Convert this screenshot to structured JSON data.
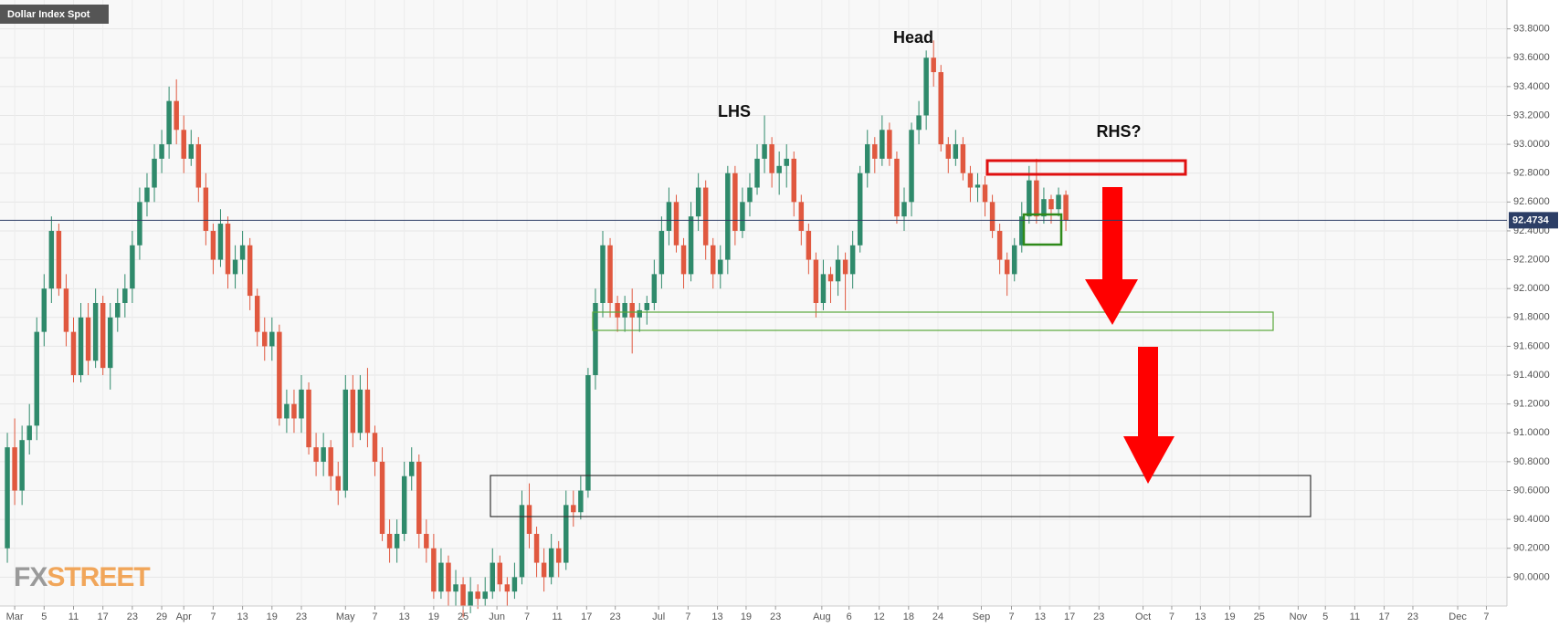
{
  "chart_data": {
    "type": "candlestick",
    "title": "Dollar Index Spot",
    "up_color": "#2f8a6b",
    "down_color": "#e0583f",
    "open": [
      90.2,
      90.9,
      90.6,
      90.95,
      91.05,
      91.7,
      92.0,
      92.4,
      92.0,
      91.7,
      91.4,
      91.8,
      91.5,
      91.9,
      91.45,
      91.8,
      91.9,
      92.0,
      92.3,
      92.6,
      92.7,
      92.9,
      93.0,
      93.3,
      93.1,
      92.9,
      93.0,
      92.7,
      92.4,
      92.2,
      92.45,
      92.1,
      92.2,
      92.3,
      91.95,
      91.7,
      91.6,
      91.7,
      91.1,
      91.2,
      91.1,
      91.3,
      90.9,
      90.8,
      90.9,
      90.7,
      90.6,
      91.3,
      91.0,
      91.3,
      91.0,
      90.8,
      90.3,
      90.2,
      90.3,
      90.7,
      90.8,
      90.3,
      90.2,
      89.9,
      90.1,
      89.9,
      89.95,
      89.8,
      89.9,
      89.85,
      89.9,
      90.1,
      89.95,
      89.9,
      90.0,
      90.5,
      90.3,
      90.1,
      90.0,
      90.2,
      90.1,
      90.5,
      90.45,
      90.6,
      91.4,
      91.9,
      92.3,
      91.9,
      91.8,
      91.9,
      91.8,
      91.85,
      91.9,
      92.1,
      92.4,
      92.6,
      92.3,
      92.1,
      92.5,
      92.7,
      92.3,
      92.1,
      92.2,
      92.8,
      92.4,
      92.6,
      92.7,
      92.9,
      93.0,
      92.8,
      92.85,
      92.9,
      92.6,
      92.4,
      92.2,
      91.9,
      92.1,
      92.05,
      92.2,
      92.1,
      92.3,
      92.8,
      93.0,
      92.9,
      93.1,
      92.9,
      92.5,
      92.6,
      93.1,
      93.2,
      93.6,
      93.5,
      93.0,
      92.9,
      93.0,
      92.8,
      92.7,
      92.72,
      92.6,
      92.4,
      92.2,
      92.1,
      92.3,
      92.5,
      92.75,
      92.5,
      92.62,
      92.55,
      92.65
    ],
    "high": [
      91.0,
      91.1,
      91.05,
      91.2,
      91.8,
      92.1,
      92.5,
      92.45,
      92.1,
      91.8,
      91.9,
      91.9,
      92.0,
      91.95,
      91.9,
      92.0,
      92.1,
      92.4,
      92.7,
      92.8,
      93.0,
      93.1,
      93.4,
      93.45,
      93.2,
      93.1,
      93.05,
      92.8,
      92.45,
      92.55,
      92.5,
      92.3,
      92.4,
      92.35,
      92.0,
      91.8,
      91.8,
      91.75,
      91.3,
      91.3,
      91.4,
      91.35,
      91.0,
      91.0,
      90.95,
      90.8,
      91.4,
      91.4,
      91.4,
      91.45,
      91.05,
      90.9,
      90.4,
      90.4,
      90.8,
      90.9,
      90.85,
      90.4,
      90.3,
      90.2,
      90.15,
      90.05,
      90.0,
      90.0,
      89.95,
      90.0,
      90.2,
      90.15,
      90.0,
      90.1,
      90.6,
      90.65,
      90.35,
      90.2,
      90.3,
      90.25,
      90.6,
      90.6,
      90.7,
      91.45,
      92.0,
      92.4,
      92.35,
      91.95,
      91.95,
      92.0,
      91.9,
      91.95,
      92.2,
      92.5,
      92.7,
      92.65,
      92.35,
      92.6,
      92.8,
      92.75,
      92.35,
      92.3,
      92.85,
      92.85,
      92.7,
      92.8,
      93.0,
      93.2,
      93.05,
      92.95,
      93.0,
      92.95,
      92.65,
      92.45,
      92.25,
      92.2,
      92.15,
      92.3,
      92.25,
      92.4,
      92.85,
      93.1,
      93.05,
      93.2,
      93.15,
      92.95,
      92.7,
      93.15,
      93.3,
      93.65,
      93.72,
      93.55,
      93.05,
      93.1,
      93.05,
      92.85,
      92.8,
      92.78,
      92.65,
      92.45,
      92.25,
      92.35,
      92.6,
      92.85,
      92.9,
      92.7,
      92.65,
      92.7,
      92.68
    ],
    "low": [
      90.1,
      90.5,
      90.5,
      90.85,
      90.95,
      91.6,
      91.9,
      91.95,
      91.6,
      91.35,
      91.35,
      91.4,
      91.45,
      91.4,
      91.3,
      91.7,
      91.8,
      91.9,
      92.2,
      92.5,
      92.6,
      92.8,
      92.9,
      93.0,
      92.8,
      92.85,
      92.6,
      92.3,
      92.1,
      92.15,
      92.0,
      92.0,
      92.1,
      91.85,
      91.6,
      91.5,
      91.5,
      91.05,
      91.0,
      91.0,
      91.0,
      90.85,
      90.7,
      90.7,
      90.6,
      90.5,
      90.55,
      90.9,
      90.95,
      90.9,
      90.7,
      90.25,
      90.1,
      90.1,
      90.25,
      90.6,
      90.2,
      90.1,
      89.85,
      89.85,
      89.8,
      89.8,
      89.72,
      89.75,
      89.78,
      89.8,
      89.85,
      89.9,
      89.8,
      89.85,
      89.95,
      90.2,
      90.0,
      89.9,
      89.95,
      90.0,
      90.05,
      90.35,
      90.4,
      90.55,
      91.3,
      91.8,
      91.8,
      91.7,
      91.7,
      91.55,
      91.7,
      91.75,
      91.85,
      92.0,
      92.3,
      92.25,
      92.0,
      92.05,
      92.4,
      92.2,
      92.0,
      92.0,
      92.1,
      92.3,
      92.35,
      92.5,
      92.65,
      92.8,
      92.7,
      92.65,
      92.7,
      92.5,
      92.3,
      92.1,
      91.8,
      91.85,
      91.9,
      91.95,
      91.85,
      92.0,
      92.25,
      92.7,
      92.8,
      92.85,
      92.85,
      92.45,
      92.4,
      92.5,
      93.0,
      93.1,
      93.4,
      92.95,
      92.8,
      92.85,
      92.75,
      92.6,
      92.6,
      92.5,
      92.35,
      92.1,
      91.95,
      92.05,
      92.25,
      92.45,
      92.45,
      92.45,
      92.45,
      92.5,
      92.4
    ],
    "close": [
      90.9,
      90.6,
      90.95,
      91.05,
      91.7,
      92.0,
      92.4,
      92.0,
      91.7,
      91.4,
      91.8,
      91.5,
      91.9,
      91.45,
      91.8,
      91.9,
      92.0,
      92.3,
      92.6,
      92.7,
      92.9,
      93.0,
      93.3,
      93.1,
      92.9,
      93.0,
      92.7,
      92.4,
      92.2,
      92.45,
      92.1,
      92.2,
      92.3,
      91.95,
      91.7,
      91.6,
      91.7,
      91.1,
      91.2,
      91.1,
      91.3,
      90.9,
      90.8,
      90.9,
      90.7,
      90.6,
      91.3,
      91.0,
      91.3,
      91.0,
      90.8,
      90.3,
      90.2,
      90.3,
      90.7,
      90.8,
      90.3,
      90.2,
      89.9,
      90.1,
      89.9,
      89.95,
      89.8,
      89.9,
      89.85,
      89.9,
      90.1,
      89.95,
      89.9,
      90.0,
      90.5,
      90.3,
      90.1,
      90.0,
      90.2,
      90.1,
      90.5,
      90.45,
      90.6,
      91.4,
      91.9,
      92.3,
      91.9,
      91.8,
      91.9,
      91.8,
      91.85,
      91.9,
      92.1,
      92.4,
      92.6,
      92.3,
      92.1,
      92.5,
      92.7,
      92.3,
      92.1,
      92.2,
      92.8,
      92.4,
      92.6,
      92.7,
      92.9,
      93.0,
      92.8,
      92.85,
      92.9,
      92.6,
      92.4,
      92.2,
      91.9,
      92.1,
      92.05,
      92.2,
      92.1,
      92.3,
      92.8,
      93.0,
      92.9,
      93.1,
      92.9,
      92.5,
      92.6,
      93.1,
      93.2,
      93.6,
      93.5,
      93.0,
      92.9,
      93.0,
      92.8,
      92.7,
      92.72,
      92.6,
      92.4,
      92.2,
      92.1,
      92.3,
      92.5,
      92.75,
      92.5,
      92.62,
      92.55,
      92.65,
      92.4734
    ],
    "last_price": 92.4734,
    "ylim": [
      89.8,
      94.0
    ],
    "yticks": [
      {
        "value": 90.0,
        "label": "90.0000"
      },
      {
        "value": 90.2,
        "label": "90.2000"
      },
      {
        "value": 90.4,
        "label": "90.4000"
      },
      {
        "value": 90.6,
        "label": "90.6000"
      },
      {
        "value": 90.8,
        "label": "90.8000"
      },
      {
        "value": 91.0,
        "label": "91.0000"
      },
      {
        "value": 91.2,
        "label": "91.2000"
      },
      {
        "value": 91.4,
        "label": "91.4000"
      },
      {
        "value": 91.6,
        "label": "91.6000"
      },
      {
        "value": 91.8,
        "label": "91.8000"
      },
      {
        "value": 92.0,
        "label": "92.0000"
      },
      {
        "value": 92.2,
        "label": "92.2000"
      },
      {
        "value": 92.4,
        "label": "92.4000"
      },
      {
        "value": 92.6,
        "label": "92.6000"
      },
      {
        "value": 92.8,
        "label": "92.8000"
      },
      {
        "value": 93.0,
        "label": "93.0000"
      },
      {
        "value": 93.2,
        "label": "93.2000"
      },
      {
        "value": 93.4,
        "label": "93.4000"
      },
      {
        "value": 93.6,
        "label": "93.6000"
      },
      {
        "value": 93.8,
        "label": "93.8000"
      }
    ],
    "xlim": [
      -1,
      204
    ],
    "xticks": [
      {
        "value": 1,
        "label": "Mar"
      },
      {
        "value": 5,
        "label": "5"
      },
      {
        "value": 9,
        "label": "11"
      },
      {
        "value": 13,
        "label": "17"
      },
      {
        "value": 17,
        "label": "23"
      },
      {
        "value": 21,
        "label": "29"
      },
      {
        "value": 24,
        "label": "Apr"
      },
      {
        "value": 28,
        "label": "7"
      },
      {
        "value": 32,
        "label": "13"
      },
      {
        "value": 36,
        "label": "19"
      },
      {
        "value": 40,
        "label": "23"
      },
      {
        "value": 46,
        "label": "May"
      },
      {
        "value": 50,
        "label": "7"
      },
      {
        "value": 54,
        "label": "13"
      },
      {
        "value": 58,
        "label": "19"
      },
      {
        "value": 62,
        "label": "25"
      },
      {
        "value": 66.6,
        "label": "Jun"
      },
      {
        "value": 70.7,
        "label": "7"
      },
      {
        "value": 74.8,
        "label": "11"
      },
      {
        "value": 78.8,
        "label": "17"
      },
      {
        "value": 82.7,
        "label": "23"
      },
      {
        "value": 88.6,
        "label": "Jul"
      },
      {
        "value": 92.6,
        "label": "7"
      },
      {
        "value": 96.6,
        "label": "13"
      },
      {
        "value": 100.5,
        "label": "19"
      },
      {
        "value": 104.5,
        "label": "23"
      },
      {
        "value": 110.8,
        "label": "Aug"
      },
      {
        "value": 114.5,
        "label": "6"
      },
      {
        "value": 118.6,
        "label": "12"
      },
      {
        "value": 122.6,
        "label": "18"
      },
      {
        "value": 126.6,
        "label": "24"
      },
      {
        "value": 132.5,
        "label": "Sep"
      },
      {
        "value": 136.6,
        "label": "7"
      },
      {
        "value": 140.5,
        "label": "13"
      },
      {
        "value": 144.5,
        "label": "17"
      },
      {
        "value": 148.5,
        "label": "23"
      },
      {
        "value": 154.5,
        "label": "Oct"
      },
      {
        "value": 158.4,
        "label": "7"
      },
      {
        "value": 162.3,
        "label": "13"
      },
      {
        "value": 166.3,
        "label": "19"
      },
      {
        "value": 170.3,
        "label": "25"
      },
      {
        "value": 175.6,
        "label": "Nov"
      },
      {
        "value": 179.3,
        "label": "5"
      },
      {
        "value": 183.3,
        "label": "11"
      },
      {
        "value": 187.3,
        "label": "17"
      },
      {
        "value": 191.2,
        "label": "23"
      },
      {
        "value": 197.3,
        "label": "Dec"
      },
      {
        "value": 201.2,
        "label": "7"
      }
    ],
    "grid": true,
    "annotations": [
      "Head",
      "LHS",
      "RHS?"
    ],
    "watermark": [
      "FX",
      "STREET"
    ]
  }
}
